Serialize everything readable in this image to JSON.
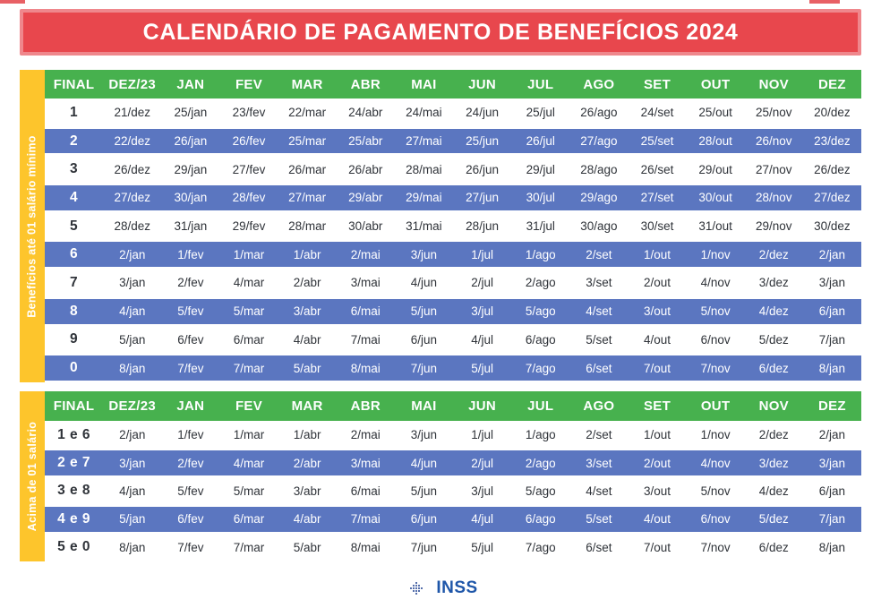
{
  "title": "CALENDÁRIO DE PAGAMENTO DE BENEFÍCIOS 2024",
  "columns": [
    "FINAL",
    "DEZ/23",
    "JAN",
    "FEV",
    "MAR",
    "ABR",
    "MAI",
    "JUN",
    "JUL",
    "AGO",
    "SET",
    "OUT",
    "NOV",
    "DEZ"
  ],
  "colors": {
    "banner_fill": "#e8474d",
    "banner_border": "#ef878c",
    "header_green": "#47b14e",
    "row_blue": "#5b76c0",
    "sidebar_yellow": "#fdc52c",
    "logo_blue": "#1e56a9"
  },
  "table1": {
    "side_label": "Benefícios até 01 salário mínimo",
    "rows": [
      {
        "final": "1",
        "dates": [
          "21/dez",
          "25/jan",
          "23/fev",
          "22/mar",
          "24/abr",
          "24/mai",
          "24/jun",
          "25/jul",
          "26/ago",
          "24/set",
          "25/out",
          "25/nov",
          "20/dez"
        ]
      },
      {
        "final": "2",
        "dates": [
          "22/dez",
          "26/jan",
          "26/fev",
          "25/mar",
          "25/abr",
          "27/mai",
          "25/jun",
          "26/jul",
          "27/ago",
          "25/set",
          "28/out",
          "26/nov",
          "23/dez"
        ]
      },
      {
        "final": "3",
        "dates": [
          "26/dez",
          "29/jan",
          "27/fev",
          "26/mar",
          "26/abr",
          "28/mai",
          "26/jun",
          "29/jul",
          "28/ago",
          "26/set",
          "29/out",
          "27/nov",
          "26/dez"
        ]
      },
      {
        "final": "4",
        "dates": [
          "27/dez",
          "30/jan",
          "28/fev",
          "27/mar",
          "29/abr",
          "29/mai",
          "27/jun",
          "30/jul",
          "29/ago",
          "27/set",
          "30/out",
          "28/nov",
          "27/dez"
        ]
      },
      {
        "final": "5",
        "dates": [
          "28/dez",
          "31/jan",
          "29/fev",
          "28/mar",
          "30/abr",
          "31/mai",
          "28/jun",
          "31/jul",
          "30/ago",
          "30/set",
          "31/out",
          "29/nov",
          "30/dez"
        ]
      },
      {
        "final": "6",
        "dates": [
          "2/jan",
          "1/fev",
          "1/mar",
          "1/abr",
          "2/mai",
          "3/jun",
          "1/jul",
          "1/ago",
          "2/set",
          "1/out",
          "1/nov",
          "2/dez",
          "2/jan"
        ]
      },
      {
        "final": "7",
        "dates": [
          "3/jan",
          "2/fev",
          "4/mar",
          "2/abr",
          "3/mai",
          "4/jun",
          "2/jul",
          "2/ago",
          "3/set",
          "2/out",
          "4/nov",
          "3/dez",
          "3/jan"
        ]
      },
      {
        "final": "8",
        "dates": [
          "4/jan",
          "5/fev",
          "5/mar",
          "3/abr",
          "6/mai",
          "5/jun",
          "3/jul",
          "5/ago",
          "4/set",
          "3/out",
          "5/nov",
          "4/dez",
          "6/jan"
        ]
      },
      {
        "final": "9",
        "dates": [
          "5/jan",
          "6/fev",
          "6/mar",
          "4/abr",
          "7/mai",
          "6/jun",
          "4/jul",
          "6/ago",
          "5/set",
          "4/out",
          "6/nov",
          "5/dez",
          "7/jan"
        ]
      },
      {
        "final": "0",
        "dates": [
          "8/jan",
          "7/fev",
          "7/mar",
          "5/abr",
          "8/mai",
          "7/jun",
          "5/jul",
          "7/ago",
          "6/set",
          "7/out",
          "7/nov",
          "6/dez",
          "8/jan"
        ]
      }
    ]
  },
  "table2": {
    "side_label": "Acima de 01 salário",
    "rows": [
      {
        "final": "1 e 6",
        "dates": [
          "2/jan",
          "1/fev",
          "1/mar",
          "1/abr",
          "2/mai",
          "3/jun",
          "1/jul",
          "1/ago",
          "2/set",
          "1/out",
          "1/nov",
          "2/dez",
          "2/jan"
        ]
      },
      {
        "final": "2 e 7",
        "dates": [
          "3/jan",
          "2/fev",
          "4/mar",
          "2/abr",
          "3/mai",
          "4/jun",
          "2/jul",
          "2/ago",
          "3/set",
          "2/out",
          "4/nov",
          "3/dez",
          "3/jan"
        ]
      },
      {
        "final": "3 e 8",
        "dates": [
          "4/jan",
          "5/fev",
          "5/mar",
          "3/abr",
          "6/mai",
          "5/jun",
          "3/jul",
          "5/ago",
          "4/set",
          "3/out",
          "5/nov",
          "4/dez",
          "6/jan"
        ]
      },
      {
        "final": "4 e 9",
        "dates": [
          "5/jan",
          "6/fev",
          "6/mar",
          "4/abr",
          "7/mai",
          "6/jun",
          "4/jul",
          "6/ago",
          "5/set",
          "4/out",
          "6/nov",
          "5/dez",
          "7/jan"
        ]
      },
      {
        "final": "5 e 0",
        "dates": [
          "8/jan",
          "7/fev",
          "7/mar",
          "5/abr",
          "8/mai",
          "7/jun",
          "5/jul",
          "7/ago",
          "6/set",
          "7/out",
          "7/nov",
          "6/dez",
          "8/jan"
        ]
      }
    ]
  },
  "footer": {
    "logo_text": "INSS"
  }
}
